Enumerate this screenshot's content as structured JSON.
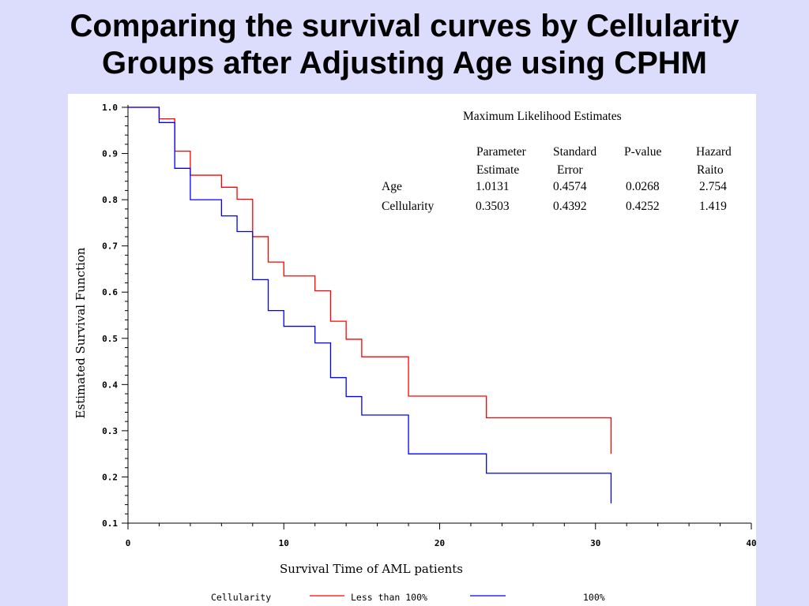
{
  "slide": {
    "title_line1": "Comparing the survival curves by Cellularity",
    "title_line2": "Groups after Adjusting Age using CPHM"
  },
  "chart_data": {
    "type": "line",
    "step": true,
    "xlabel": "Survival Time of AML patients",
    "ylabel": "Estimated Survival Function",
    "xlim": [
      0,
      40
    ],
    "ylim": [
      0.1,
      1.0
    ],
    "xticks": [
      "0",
      "10",
      "20",
      "30",
      "40"
    ],
    "yticks": [
      "0.1",
      "0.2",
      "0.3",
      "0.4",
      "0.5",
      "0.6",
      "0.7",
      "0.8",
      "0.9",
      "1.0"
    ],
    "grid": false,
    "series": [
      {
        "name": "Less than 100%",
        "color": "#ff0000",
        "x": [
          0,
          2,
          3,
          4,
          6,
          7,
          8,
          9,
          10,
          12,
          13,
          14,
          15,
          18,
          23,
          31
        ],
        "y": [
          1.0,
          0.975,
          0.905,
          0.853,
          0.827,
          0.801,
          0.72,
          0.665,
          0.635,
          0.603,
          0.537,
          0.498,
          0.46,
          0.375,
          0.328,
          0.25
        ]
      },
      {
        "name": "100%",
        "color": "#0000ff",
        "x": [
          0,
          2,
          3,
          4,
          6,
          7,
          8,
          9,
          10,
          12,
          13,
          14,
          15,
          18,
          23,
          31
        ],
        "y": [
          1.0,
          0.967,
          0.868,
          0.8,
          0.765,
          0.731,
          0.627,
          0.56,
          0.526,
          0.49,
          0.415,
          0.374,
          0.334,
          0.25,
          0.208,
          0.143
        ]
      }
    ],
    "legend": {
      "title": "Cellularity",
      "position": "bottom",
      "entries": [
        "Less than 100%",
        "100%"
      ]
    },
    "annotation_table": {
      "title": "Maximum Likelihood Estimates",
      "header_line1": [
        "Parameter",
        "Standard",
        "P-value",
        "Hazard"
      ],
      "header_line2": [
        "Estimate",
        "Error",
        "",
        "Raito"
      ],
      "rows": [
        {
          "label": "Age",
          "values": [
            "1.0131",
            "0.4574",
            "0.0268",
            "2.754"
          ],
          "color": "#000000"
        },
        {
          "label": "Cellularity",
          "values": [
            "0.3503",
            "0.4392",
            "0.4252",
            "1.419"
          ],
          "color": "#ff0000"
        }
      ]
    }
  }
}
